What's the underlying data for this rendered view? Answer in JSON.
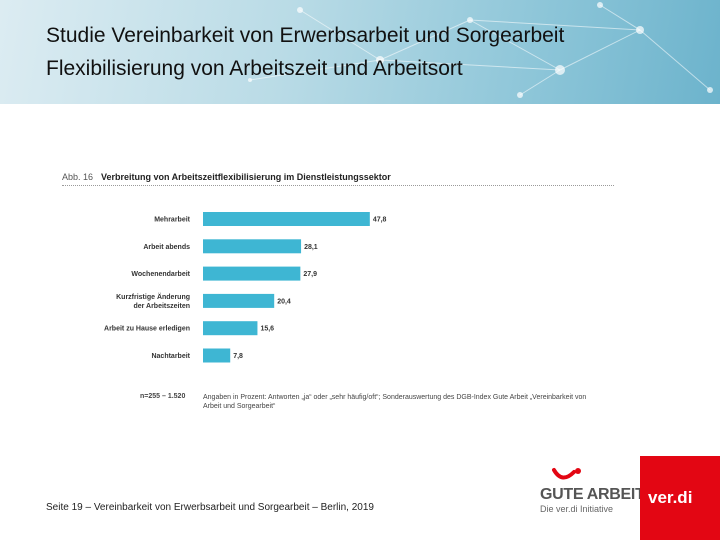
{
  "header": {
    "title": "Studie Vereinbarkeit von Erwerbsarbeit und Sorgearbeit",
    "subtitle": "Flexibilisierung von Arbeitszeit und Arbeitsort"
  },
  "figure": {
    "label": "Abb. 16",
    "title": "Verbreitung von Arbeitszeitflexibilisierung im Dienstleistungssektor",
    "sample_note": "n=255 – 1.520",
    "note": "Angaben in Prozent: Antworten „ja“ oder „sehr häufig/oft“; Sonderauswertung des DGB-Index Gute Arbeit „Vereinbarkeit von Arbeit und Sorgearbeit“"
  },
  "chart_data": {
    "type": "bar",
    "orientation": "horizontal",
    "title": "Verbreitung von Arbeitszeitflexibilisierung im Dienstleistungssektor",
    "categories": [
      "Mehrarbeit",
      "Arbeit abends",
      "Wochenendarbeit",
      "Kurzfristige Änderung der Arbeitszeiten",
      "Arbeit zu Hause erledigen",
      "Nachtarbeit"
    ],
    "values": [
      47.8,
      28.1,
      27.9,
      20.4,
      15.6,
      7.8
    ],
    "value_labels": [
      "47,8",
      "28,1",
      "27,9",
      "20,4",
      "15,6",
      "7,8"
    ],
    "xlim": [
      0,
      100
    ],
    "grid": false,
    "legend": "none",
    "bar_color": "#3eb6d3"
  },
  "footer": {
    "text": "Seite 19  –  Vereinbarkeit von Erwerbsarbeit und Sorgearbeit  –  Berlin, 2019"
  },
  "logos": {
    "gute_arbeit": "GUTE ARBEIT",
    "gute_arbeit_sub": "Die ver.di Initiative",
    "verdi": "ver.di"
  }
}
